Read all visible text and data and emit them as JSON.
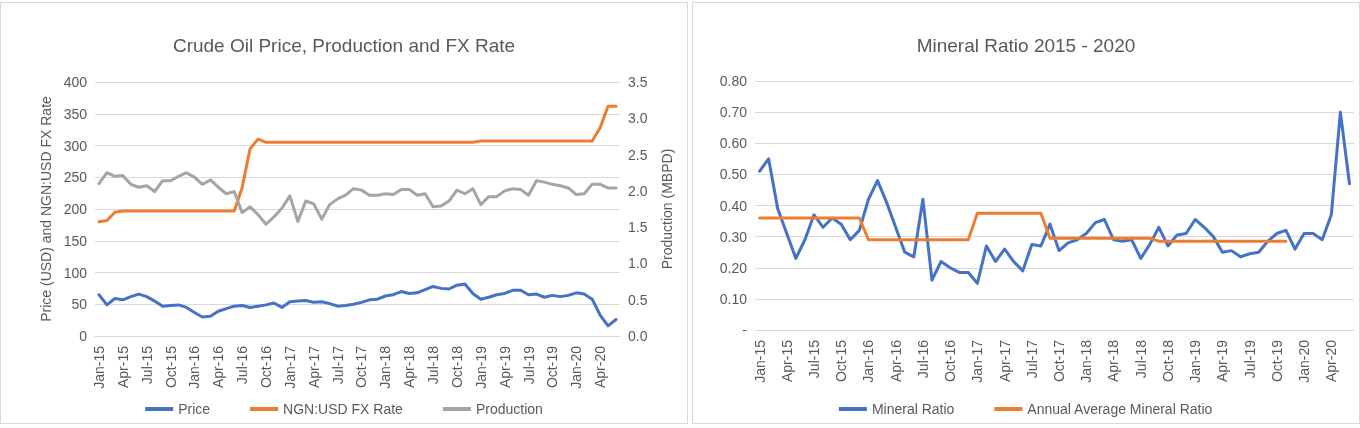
{
  "chart_data": [
    {
      "type": "line",
      "title": "Crude Oil Price, Production and FX Rate",
      "ylabel": "Price (USD) and NGN:USD FX Rate",
      "y2label": "Production (MBPD)",
      "categories": [
        "Jan-15",
        null,
        null,
        "Apr-15",
        null,
        null,
        "Jul-15",
        null,
        null,
        "Oct-15",
        null,
        null,
        "Jan-16",
        null,
        null,
        "Apr-16",
        null,
        null,
        "Jul-16",
        null,
        null,
        "Oct-16",
        null,
        null,
        "Jan-17",
        null,
        null,
        "Apr-17",
        null,
        null,
        "Jul-17",
        null,
        null,
        "Oct-17",
        null,
        null,
        "Jan-18",
        null,
        null,
        "Apr-18",
        null,
        null,
        "Jul-18",
        null,
        null,
        "Oct-18",
        null,
        null,
        "Jan-19",
        null,
        null,
        "Apr-19",
        null,
        null,
        "Jul-19",
        null,
        null,
        "Oct-19",
        null,
        null,
        "Jan-20",
        null,
        null,
        "Apr-20",
        null,
        null
      ],
      "series": [
        {
          "name": "Price",
          "color": "#4472c4",
          "values": [
            65,
            49,
            59,
            57,
            62,
            66,
            62,
            55,
            47,
            48,
            49,
            45,
            37,
            30,
            31,
            39,
            43,
            47,
            48,
            45,
            47,
            49,
            52,
            45,
            54,
            55,
            56,
            53,
            54,
            51,
            47,
            48,
            50,
            53,
            57,
            58,
            63,
            65,
            70,
            67,
            68,
            73,
            78,
            75,
            74,
            80,
            82,
            67,
            58,
            61,
            65,
            67,
            72,
            72,
            65,
            66,
            61,
            64,
            62,
            64,
            68,
            66,
            58,
            33,
            16,
            26
          ]
        },
        {
          "name": "NGN:USD FX Rate",
          "color": "#ed7d31",
          "values": [
            180,
            182,
            195,
            197,
            197,
            197,
            197,
            197,
            197,
            197,
            197,
            197,
            197,
            197,
            197,
            197,
            197,
            197,
            234,
            295,
            310,
            305,
            305,
            305,
            305,
            305,
            305,
            305,
            305,
            305,
            305,
            305,
            305,
            305,
            305,
            305,
            305,
            305,
            305,
            305,
            305,
            305,
            305,
            305,
            305,
            305,
            305,
            305,
            307,
            307,
            307,
            307,
            307,
            307,
            307,
            307,
            307,
            307,
            307,
            307,
            307,
            307,
            307,
            328,
            362,
            362
          ]
        },
        {
          "name": "Production",
          "color": "#a5a5a5",
          "axis": "y2",
          "values": [
            2.1,
            2.25,
            2.2,
            2.21,
            2.09,
            2.05,
            2.07,
            1.99,
            2.14,
            2.14,
            2.2,
            2.25,
            2.19,
            2.09,
            2.15,
            2.05,
            1.96,
            1.99,
            1.7,
            1.78,
            1.67,
            1.54,
            1.64,
            1.76,
            1.93,
            1.58,
            1.86,
            1.82,
            1.61,
            1.81,
            1.89,
            1.94,
            2.03,
            2.01,
            1.94,
            1.94,
            1.96,
            1.95,
            2.02,
            2.02,
            1.94,
            1.96,
            1.78,
            1.79,
            1.86,
            2.01,
            1.96,
            2.03,
            1.81,
            1.92,
            1.92,
            2.0,
            2.03,
            2.02,
            1.94,
            2.14,
            2.12,
            2.09,
            2.07,
            2.04,
            1.95,
            1.96,
            2.09,
            2.09,
            2.04,
            2.04
          ]
        }
      ],
      "ylim": [
        0,
        400
      ],
      "yticks": [
        0,
        50,
        100,
        150,
        200,
        250,
        300,
        350,
        400
      ],
      "y2lim": [
        0,
        3.5
      ],
      "y2ticks": [
        {
          "value": 0,
          "label": "0.0"
        },
        {
          "value": 0.5,
          "label": "0.5"
        },
        {
          "value": 1,
          "label": "1.0"
        },
        {
          "value": 1.5,
          "label": "1.5"
        },
        {
          "value": 2,
          "label": "2.0"
        },
        {
          "value": 2.5,
          "label": "2.5"
        },
        {
          "value": 3,
          "label": "3.0"
        },
        {
          "value": 3.5,
          "label": "3.5"
        }
      ],
      "grid": "y",
      "legend": "bottom",
      "marker": "none",
      "line_style": "solid"
    },
    {
      "type": "line",
      "title": "Mineral Ratio 2015 - 2020",
      "categories": [
        "Jan-15",
        null,
        null,
        "Apr-15",
        null,
        null,
        "Jul-15",
        null,
        null,
        "Oct-15",
        null,
        null,
        "Jan-16",
        null,
        null,
        "Apr-16",
        null,
        null,
        "Jul-16",
        null,
        null,
        "Oct-16",
        null,
        null,
        "Jan-17",
        null,
        null,
        "Apr-17",
        null,
        null,
        "Jul-17",
        null,
        null,
        "Oct-17",
        null,
        null,
        "Jan-18",
        null,
        null,
        "Apr-18",
        null,
        null,
        "Jul-18",
        null,
        null,
        "Oct-18",
        null,
        null,
        "Jan-19",
        null,
        null,
        "Apr-19",
        null,
        null,
        "Jul-19",
        null,
        null,
        "Oct-19",
        null,
        null,
        "Jan-20",
        null,
        null,
        "Apr-20",
        null,
        null
      ],
      "series": [
        {
          "name": "Mineral Ratio",
          "color": "#4472c4",
          "values": [
            0.51,
            0.55,
            0.39,
            0.31,
            0.23,
            0.29,
            0.37,
            0.33,
            0.36,
            0.34,
            0.29,
            0.32,
            0.42,
            0.48,
            0.41,
            0.33,
            0.25,
            0.235,
            0.42,
            0.16,
            0.22,
            0.2,
            0.185,
            0.185,
            0.15,
            0.27,
            0.22,
            0.26,
            0.22,
            0.19,
            0.275,
            0.27,
            0.34,
            0.255,
            0.28,
            0.29,
            0.31,
            0.345,
            0.355,
            0.29,
            0.285,
            0.29,
            0.23,
            0.275,
            0.33,
            0.27,
            0.305,
            0.31,
            0.355,
            0.33,
            0.3,
            0.25,
            0.255,
            0.235,
            0.245,
            0.25,
            0.285,
            0.31,
            0.32,
            0.26,
            0.31,
            0.31,
            0.29,
            0.37,
            0.7,
            0.47
          ]
        },
        {
          "name": "Annual Average Mineral Ratio",
          "color": "#ed7d31",
          "values": [
            0.36,
            0.36,
            0.36,
            0.36,
            0.36,
            0.36,
            0.36,
            0.36,
            0.36,
            0.36,
            0.36,
            0.36,
            0.29,
            0.29,
            0.29,
            0.29,
            0.29,
            0.29,
            0.29,
            0.29,
            0.29,
            0.29,
            0.29,
            0.29,
            0.375,
            0.375,
            0.375,
            0.375,
            0.375,
            0.375,
            0.375,
            0.375,
            0.295,
            0.295,
            0.295,
            0.295,
            0.295,
            0.295,
            0.295,
            0.295,
            0.295,
            0.295,
            0.295,
            0.295,
            0.285,
            0.285,
            0.285,
            0.285,
            0.285,
            0.285,
            0.285,
            0.285,
            0.285,
            0.285,
            0.285,
            0.285,
            0.285,
            0.285,
            0.285,
            null,
            null,
            null,
            null,
            null,
            null,
            null
          ]
        }
      ],
      "ylim": [
        0,
        0.8
      ],
      "yticks": [
        {
          "value": 0,
          "label": "-"
        },
        {
          "value": 0.1,
          "label": "0.10"
        },
        {
          "value": 0.2,
          "label": "0.20"
        },
        {
          "value": 0.3,
          "label": "0.30"
        },
        {
          "value": 0.4,
          "label": "0.40"
        },
        {
          "value": 0.5,
          "label": "0.50"
        },
        {
          "value": 0.6,
          "label": "0.60"
        },
        {
          "value": 0.7,
          "label": "0.70"
        },
        {
          "value": 0.8,
          "label": "0.80"
        }
      ],
      "grid": "y",
      "legend": "bottom",
      "marker": "none",
      "line_style": "solid"
    }
  ]
}
